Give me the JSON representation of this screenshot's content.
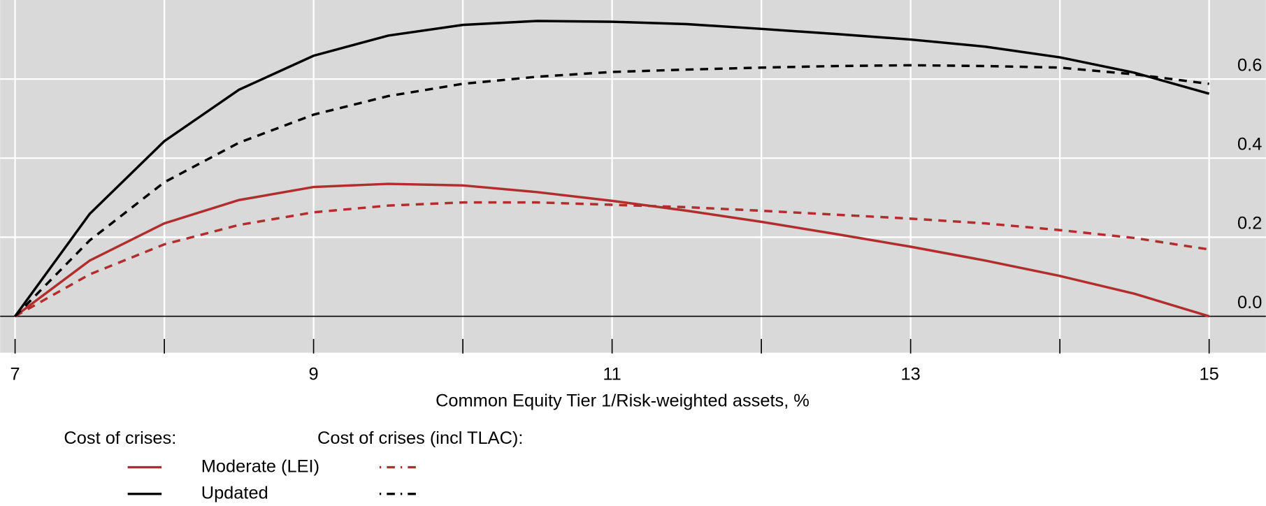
{
  "chart_data": {
    "type": "line",
    "x_label": "Common Equity Tier 1/Risk-weighted assets, %",
    "x": [
      7,
      7.5,
      8,
      8.5,
      9,
      9.5,
      10,
      10.5,
      11,
      11.5,
      12,
      12.5,
      13,
      13.5,
      14,
      14.5,
      15
    ],
    "series": [
      {
        "name": "Moderate (LEI)",
        "color": "#b22d2d",
        "values": [
          0,
          0.141,
          0.235,
          0.294,
          0.327,
          0.335,
          0.331,
          0.314,
          0.292,
          0.267,
          0.239,
          0.208,
          0.176,
          0.141,
          0.102,
          0.057,
          0
        ],
        "tlac_values": [
          0,
          0.106,
          0.182,
          0.231,
          0.263,
          0.28,
          0.288,
          0.288,
          0.282,
          0.276,
          0.267,
          0.257,
          0.247,
          0.235,
          0.218,
          0.198,
          0.169
        ]
      },
      {
        "name": "Updated",
        "color": "#000000",
        "values": [
          0,
          0.259,
          0.443,
          0.573,
          0.659,
          0.71,
          0.737,
          0.747,
          0.745,
          0.739,
          0.727,
          0.714,
          0.7,
          0.682,
          0.655,
          0.616,
          0.563
        ],
        "tlac_values": [
          0,
          0.192,
          0.339,
          0.439,
          0.51,
          0.557,
          0.588,
          0.606,
          0.618,
          0.624,
          0.629,
          0.633,
          0.635,
          0.633,
          0.629,
          0.612,
          0.588
        ]
      }
    ],
    "legend_titles": [
      "Cost of crises:",
      "Cost of crises (incl TLAC):"
    ],
    "xlim": [
      6.9,
      15.38
    ],
    "ylim": [
      -0.092,
      0.8
    ],
    "xticks": [
      7,
      9,
      11,
      13,
      15
    ],
    "xminor_ticks": [
      8,
      10,
      12,
      14
    ],
    "yticks": [
      {
        "value": 0,
        "label": "0.0"
      },
      0.2,
      0.4,
      0.6
    ],
    "grid": true,
    "background": "#d9d9d9"
  }
}
